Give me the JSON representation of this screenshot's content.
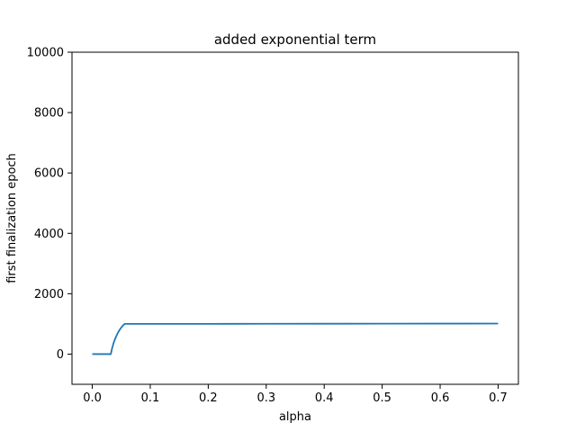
{
  "chart_data": {
    "type": "line",
    "title": "added exponential term",
    "xlabel": "alpha",
    "ylabel": "first finalization epoch",
    "xlim": [
      -0.035,
      0.735
    ],
    "ylim": [
      -1000,
      10000
    ],
    "xticks": [
      0.0,
      0.1,
      0.2,
      0.3,
      0.4,
      0.5,
      0.6,
      0.7
    ],
    "xtick_labels": [
      "0.0",
      "0.1",
      "0.2",
      "0.3",
      "0.4",
      "0.5",
      "0.6",
      "0.7"
    ],
    "yticks": [
      0,
      2000,
      4000,
      6000,
      8000,
      10000
    ],
    "ytick_labels": [
      "0",
      "2000",
      "4000",
      "6000",
      "8000",
      "10000"
    ],
    "grid": false,
    "legend": "none",
    "series": [
      {
        "color": "#1f77b4",
        "x": [
          0.0,
          0.01,
          0.02,
          0.032,
          0.033,
          0.034,
          0.036,
          0.038,
          0.041,
          0.044,
          0.047,
          0.05,
          0.053,
          0.056,
          0.1,
          0.2,
          0.3,
          0.4,
          0.5,
          0.6,
          0.7
        ],
        "y": [
          0,
          0,
          0,
          0,
          90,
          180,
          320,
          440,
          580,
          700,
          800,
          880,
          950,
          1000,
          1000,
          1002,
          1004,
          1006,
          1008,
          1010,
          1012
        ]
      }
    ]
  }
}
